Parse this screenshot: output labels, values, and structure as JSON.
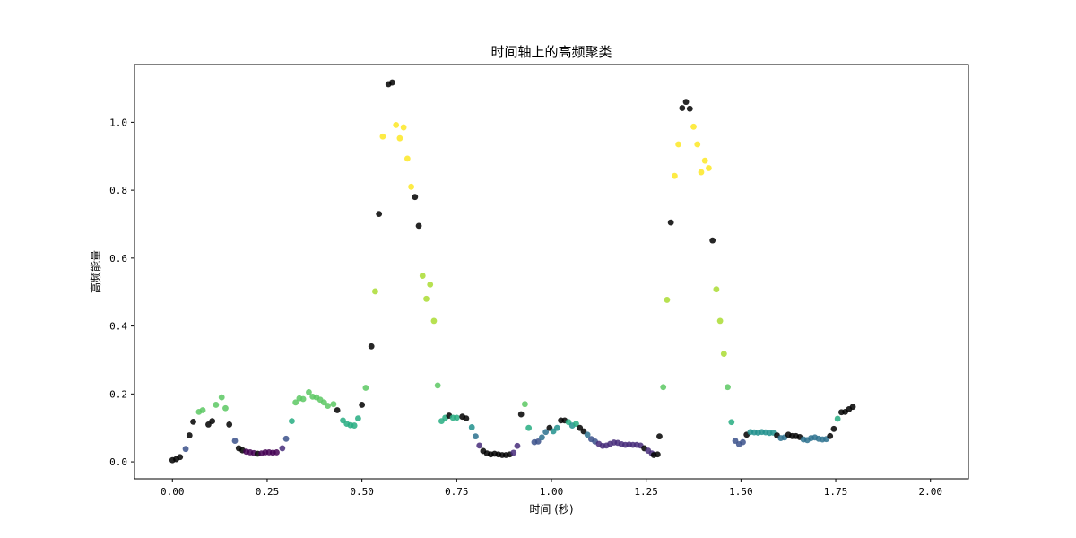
{
  "chart_data": {
    "type": "scatter",
    "title": "时间轴上的高频聚类",
    "xlabel": "时间 (秒)",
    "ylabel": "高频能量",
    "xlim": [
      -0.1,
      2.1
    ],
    "ylim": [
      -0.05,
      1.17
    ],
    "xticks": [
      "0.00",
      "0.25",
      "0.50",
      "0.75",
      "1.00",
      "1.25",
      "1.50",
      "1.75",
      "2.00"
    ],
    "yticks": [
      "0.0",
      "0.2",
      "0.4",
      "0.6",
      "0.8",
      "1.0"
    ],
    "grid": false,
    "legend": "none",
    "point_alpha": 0.85,
    "cluster_colors": {
      "noise": "#000000",
      "c0": "#440154",
      "c1": "#472c7a",
      "c2": "#3b518b",
      "c3": "#2c718e",
      "c4": "#21908d",
      "c5": "#27ad81",
      "c6": "#5cc863",
      "c7": "#aadc32",
      "c8": "#fde725"
    },
    "points": [
      {
        "x": 0.0,
        "y": 0.005,
        "c": "noise"
      },
      {
        "x": 0.01,
        "y": 0.008,
        "c": "noise"
      },
      {
        "x": 0.02,
        "y": 0.014,
        "c": "noise"
      },
      {
        "x": 0.035,
        "y": 0.038,
        "c": "c2"
      },
      {
        "x": 0.045,
        "y": 0.078,
        "c": "noise"
      },
      {
        "x": 0.055,
        "y": 0.118,
        "c": "noise"
      },
      {
        "x": 0.07,
        "y": 0.147,
        "c": "c6"
      },
      {
        "x": 0.08,
        "y": 0.152,
        "c": "c6"
      },
      {
        "x": 0.095,
        "y": 0.11,
        "c": "noise"
      },
      {
        "x": 0.105,
        "y": 0.12,
        "c": "noise"
      },
      {
        "x": 0.115,
        "y": 0.168,
        "c": "c6"
      },
      {
        "x": 0.13,
        "y": 0.19,
        "c": "c6"
      },
      {
        "x": 0.14,
        "y": 0.158,
        "c": "c6"
      },
      {
        "x": 0.15,
        "y": 0.11,
        "c": "noise"
      },
      {
        "x": 0.165,
        "y": 0.062,
        "c": "c2"
      },
      {
        "x": 0.175,
        "y": 0.04,
        "c": "noise"
      },
      {
        "x": 0.185,
        "y": 0.034,
        "c": "noise"
      },
      {
        "x": 0.195,
        "y": 0.03,
        "c": "c0"
      },
      {
        "x": 0.205,
        "y": 0.028,
        "c": "c0"
      },
      {
        "x": 0.215,
        "y": 0.026,
        "c": "c0"
      },
      {
        "x": 0.225,
        "y": 0.024,
        "c": "noise"
      },
      {
        "x": 0.235,
        "y": 0.025,
        "c": "c0"
      },
      {
        "x": 0.245,
        "y": 0.028,
        "c": "c0"
      },
      {
        "x": 0.255,
        "y": 0.028,
        "c": "c0"
      },
      {
        "x": 0.265,
        "y": 0.027,
        "c": "c0"
      },
      {
        "x": 0.275,
        "y": 0.028,
        "c": "c0"
      },
      {
        "x": 0.29,
        "y": 0.04,
        "c": "c1"
      },
      {
        "x": 0.3,
        "y": 0.068,
        "c": "c2"
      },
      {
        "x": 0.315,
        "y": 0.12,
        "c": "c5"
      },
      {
        "x": 0.325,
        "y": 0.175,
        "c": "c6"
      },
      {
        "x": 0.335,
        "y": 0.187,
        "c": "c6"
      },
      {
        "x": 0.345,
        "y": 0.185,
        "c": "c6"
      },
      {
        "x": 0.36,
        "y": 0.205,
        "c": "c6"
      },
      {
        "x": 0.37,
        "y": 0.192,
        "c": "c6"
      },
      {
        "x": 0.38,
        "y": 0.19,
        "c": "c6"
      },
      {
        "x": 0.39,
        "y": 0.183,
        "c": "c6"
      },
      {
        "x": 0.4,
        "y": 0.175,
        "c": "c6"
      },
      {
        "x": 0.41,
        "y": 0.165,
        "c": "c6"
      },
      {
        "x": 0.425,
        "y": 0.17,
        "c": "c6"
      },
      {
        "x": 0.435,
        "y": 0.152,
        "c": "noise"
      },
      {
        "x": 0.45,
        "y": 0.122,
        "c": "c5"
      },
      {
        "x": 0.46,
        "y": 0.112,
        "c": "c5"
      },
      {
        "x": 0.47,
        "y": 0.108,
        "c": "c5"
      },
      {
        "x": 0.48,
        "y": 0.107,
        "c": "c5"
      },
      {
        "x": 0.49,
        "y": 0.128,
        "c": "c5"
      },
      {
        "x": 0.5,
        "y": 0.168,
        "c": "noise"
      },
      {
        "x": 0.51,
        "y": 0.218,
        "c": "c6"
      },
      {
        "x": 0.525,
        "y": 0.34,
        "c": "noise"
      },
      {
        "x": 0.535,
        "y": 0.502,
        "c": "c7"
      },
      {
        "x": 0.545,
        "y": 0.73,
        "c": "noise"
      },
      {
        "x": 0.555,
        "y": 0.958,
        "c": "c8"
      },
      {
        "x": 0.57,
        "y": 1.112,
        "c": "noise"
      },
      {
        "x": 0.58,
        "y": 1.117,
        "c": "noise"
      },
      {
        "x": 0.59,
        "y": 0.992,
        "c": "c8"
      },
      {
        "x": 0.6,
        "y": 0.953,
        "c": "c8"
      },
      {
        "x": 0.61,
        "y": 0.985,
        "c": "c8"
      },
      {
        "x": 0.62,
        "y": 0.893,
        "c": "c8"
      },
      {
        "x": 0.63,
        "y": 0.81,
        "c": "c8"
      },
      {
        "x": 0.64,
        "y": 0.78,
        "c": "noise"
      },
      {
        "x": 0.65,
        "y": 0.695,
        "c": "noise"
      },
      {
        "x": 0.66,
        "y": 0.548,
        "c": "c7"
      },
      {
        "x": 0.67,
        "y": 0.48,
        "c": "c7"
      },
      {
        "x": 0.68,
        "y": 0.522,
        "c": "c7"
      },
      {
        "x": 0.69,
        "y": 0.415,
        "c": "c7"
      },
      {
        "x": 0.7,
        "y": 0.225,
        "c": "c6"
      },
      {
        "x": 0.71,
        "y": 0.12,
        "c": "c5"
      },
      {
        "x": 0.72,
        "y": 0.13,
        "c": "c5"
      },
      {
        "x": 0.73,
        "y": 0.136,
        "c": "noise"
      },
      {
        "x": 0.74,
        "y": 0.13,
        "c": "c5"
      },
      {
        "x": 0.75,
        "y": 0.13,
        "c": "c5"
      },
      {
        "x": 0.765,
        "y": 0.133,
        "c": "noise"
      },
      {
        "x": 0.775,
        "y": 0.128,
        "c": "noise"
      },
      {
        "x": 0.79,
        "y": 0.102,
        "c": "c4"
      },
      {
        "x": 0.8,
        "y": 0.075,
        "c": "c3"
      },
      {
        "x": 0.81,
        "y": 0.048,
        "c": "c1"
      },
      {
        "x": 0.82,
        "y": 0.032,
        "c": "noise"
      },
      {
        "x": 0.83,
        "y": 0.025,
        "c": "noise"
      },
      {
        "x": 0.84,
        "y": 0.022,
        "c": "noise"
      },
      {
        "x": 0.85,
        "y": 0.024,
        "c": "noise"
      },
      {
        "x": 0.86,
        "y": 0.022,
        "c": "noise"
      },
      {
        "x": 0.87,
        "y": 0.02,
        "c": "noise"
      },
      {
        "x": 0.88,
        "y": 0.02,
        "c": "noise"
      },
      {
        "x": 0.89,
        "y": 0.022,
        "c": "noise"
      },
      {
        "x": 0.9,
        "y": 0.027,
        "c": "c1"
      },
      {
        "x": 0.91,
        "y": 0.047,
        "c": "c1"
      },
      {
        "x": 0.92,
        "y": 0.14,
        "c": "noise"
      },
      {
        "x": 0.93,
        "y": 0.17,
        "c": "c6"
      },
      {
        "x": 0.94,
        "y": 0.1,
        "c": "c5"
      },
      {
        "x": 0.955,
        "y": 0.058,
        "c": "c2"
      },
      {
        "x": 0.965,
        "y": 0.06,
        "c": "c2"
      },
      {
        "x": 0.975,
        "y": 0.072,
        "c": "c3"
      },
      {
        "x": 0.985,
        "y": 0.088,
        "c": "c3"
      },
      {
        "x": 0.995,
        "y": 0.1,
        "c": "noise"
      },
      {
        "x": 1.005,
        "y": 0.09,
        "c": "c4"
      },
      {
        "x": 1.015,
        "y": 0.1,
        "c": "c4"
      },
      {
        "x": 1.025,
        "y": 0.122,
        "c": "noise"
      },
      {
        "x": 1.035,
        "y": 0.122,
        "c": "noise"
      },
      {
        "x": 1.045,
        "y": 0.117,
        "c": "c5"
      },
      {
        "x": 1.055,
        "y": 0.107,
        "c": "c4"
      },
      {
        "x": 1.065,
        "y": 0.112,
        "c": "c5"
      },
      {
        "x": 1.075,
        "y": 0.1,
        "c": "noise"
      },
      {
        "x": 1.085,
        "y": 0.09,
        "c": "noise"
      },
      {
        "x": 1.095,
        "y": 0.08,
        "c": "c3"
      },
      {
        "x": 1.105,
        "y": 0.067,
        "c": "c2"
      },
      {
        "x": 1.115,
        "y": 0.06,
        "c": "c2"
      },
      {
        "x": 1.125,
        "y": 0.053,
        "c": "c1"
      },
      {
        "x": 1.135,
        "y": 0.047,
        "c": "c1"
      },
      {
        "x": 1.145,
        "y": 0.048,
        "c": "c1"
      },
      {
        "x": 1.155,
        "y": 0.053,
        "c": "c1"
      },
      {
        "x": 1.165,
        "y": 0.057,
        "c": "c1"
      },
      {
        "x": 1.175,
        "y": 0.056,
        "c": "c1"
      },
      {
        "x": 1.185,
        "y": 0.052,
        "c": "c1"
      },
      {
        "x": 1.195,
        "y": 0.05,
        "c": "c1"
      },
      {
        "x": 1.205,
        "y": 0.051,
        "c": "c1"
      },
      {
        "x": 1.215,
        "y": 0.05,
        "c": "c1"
      },
      {
        "x": 1.225,
        "y": 0.05,
        "c": "c1"
      },
      {
        "x": 1.235,
        "y": 0.048,
        "c": "c1"
      },
      {
        "x": 1.245,
        "y": 0.04,
        "c": "noise"
      },
      {
        "x": 1.255,
        "y": 0.033,
        "c": "c1"
      },
      {
        "x": 1.265,
        "y": 0.025,
        "c": "c1"
      },
      {
        "x": 1.27,
        "y": 0.02,
        "c": "noise"
      },
      {
        "x": 1.28,
        "y": 0.022,
        "c": "noise"
      },
      {
        "x": 1.285,
        "y": 0.075,
        "c": "noise"
      },
      {
        "x": 1.295,
        "y": 0.22,
        "c": "c6"
      },
      {
        "x": 1.305,
        "y": 0.477,
        "c": "c7"
      },
      {
        "x": 1.315,
        "y": 0.705,
        "c": "noise"
      },
      {
        "x": 1.325,
        "y": 0.842,
        "c": "c8"
      },
      {
        "x": 1.335,
        "y": 0.935,
        "c": "c8"
      },
      {
        "x": 1.345,
        "y": 1.042,
        "c": "noise"
      },
      {
        "x": 1.355,
        "y": 1.06,
        "c": "noise"
      },
      {
        "x": 1.365,
        "y": 1.04,
        "c": "noise"
      },
      {
        "x": 1.375,
        "y": 0.987,
        "c": "c8"
      },
      {
        "x": 1.385,
        "y": 0.935,
        "c": "c8"
      },
      {
        "x": 1.395,
        "y": 0.853,
        "c": "c8"
      },
      {
        "x": 1.405,
        "y": 0.887,
        "c": "c8"
      },
      {
        "x": 1.415,
        "y": 0.865,
        "c": "c8"
      },
      {
        "x": 1.425,
        "y": 0.652,
        "c": "noise"
      },
      {
        "x": 1.435,
        "y": 0.508,
        "c": "c7"
      },
      {
        "x": 1.445,
        "y": 0.415,
        "c": "c7"
      },
      {
        "x": 1.455,
        "y": 0.318,
        "c": "c7"
      },
      {
        "x": 1.465,
        "y": 0.22,
        "c": "c6"
      },
      {
        "x": 1.475,
        "y": 0.117,
        "c": "c5"
      },
      {
        "x": 1.485,
        "y": 0.062,
        "c": "c2"
      },
      {
        "x": 1.495,
        "y": 0.052,
        "c": "c2"
      },
      {
        "x": 1.505,
        "y": 0.058,
        "c": "c2"
      },
      {
        "x": 1.515,
        "y": 0.08,
        "c": "noise"
      },
      {
        "x": 1.525,
        "y": 0.088,
        "c": "c4"
      },
      {
        "x": 1.535,
        "y": 0.087,
        "c": "c4"
      },
      {
        "x": 1.545,
        "y": 0.086,
        "c": "c4"
      },
      {
        "x": 1.555,
        "y": 0.088,
        "c": "c4"
      },
      {
        "x": 1.565,
        "y": 0.087,
        "c": "c4"
      },
      {
        "x": 1.575,
        "y": 0.085,
        "c": "c4"
      },
      {
        "x": 1.585,
        "y": 0.086,
        "c": "c4"
      },
      {
        "x": 1.595,
        "y": 0.078,
        "c": "noise"
      },
      {
        "x": 1.605,
        "y": 0.07,
        "c": "c3"
      },
      {
        "x": 1.615,
        "y": 0.072,
        "c": "c3"
      },
      {
        "x": 1.625,
        "y": 0.08,
        "c": "noise"
      },
      {
        "x": 1.635,
        "y": 0.076,
        "c": "noise"
      },
      {
        "x": 1.645,
        "y": 0.076,
        "c": "noise"
      },
      {
        "x": 1.655,
        "y": 0.073,
        "c": "noise"
      },
      {
        "x": 1.665,
        "y": 0.066,
        "c": "c3"
      },
      {
        "x": 1.675,
        "y": 0.064,
        "c": "c3"
      },
      {
        "x": 1.685,
        "y": 0.07,
        "c": "c3"
      },
      {
        "x": 1.695,
        "y": 0.072,
        "c": "c3"
      },
      {
        "x": 1.705,
        "y": 0.068,
        "c": "c3"
      },
      {
        "x": 1.715,
        "y": 0.066,
        "c": "c3"
      },
      {
        "x": 1.725,
        "y": 0.067,
        "c": "c3"
      },
      {
        "x": 1.735,
        "y": 0.076,
        "c": "noise"
      },
      {
        "x": 1.745,
        "y": 0.097,
        "c": "noise"
      },
      {
        "x": 1.755,
        "y": 0.127,
        "c": "c5"
      },
      {
        "x": 1.765,
        "y": 0.146,
        "c": "noise"
      },
      {
        "x": 1.775,
        "y": 0.147,
        "c": "noise"
      },
      {
        "x": 1.785,
        "y": 0.155,
        "c": "noise"
      },
      {
        "x": 1.795,
        "y": 0.162,
        "c": "noise"
      }
    ]
  }
}
